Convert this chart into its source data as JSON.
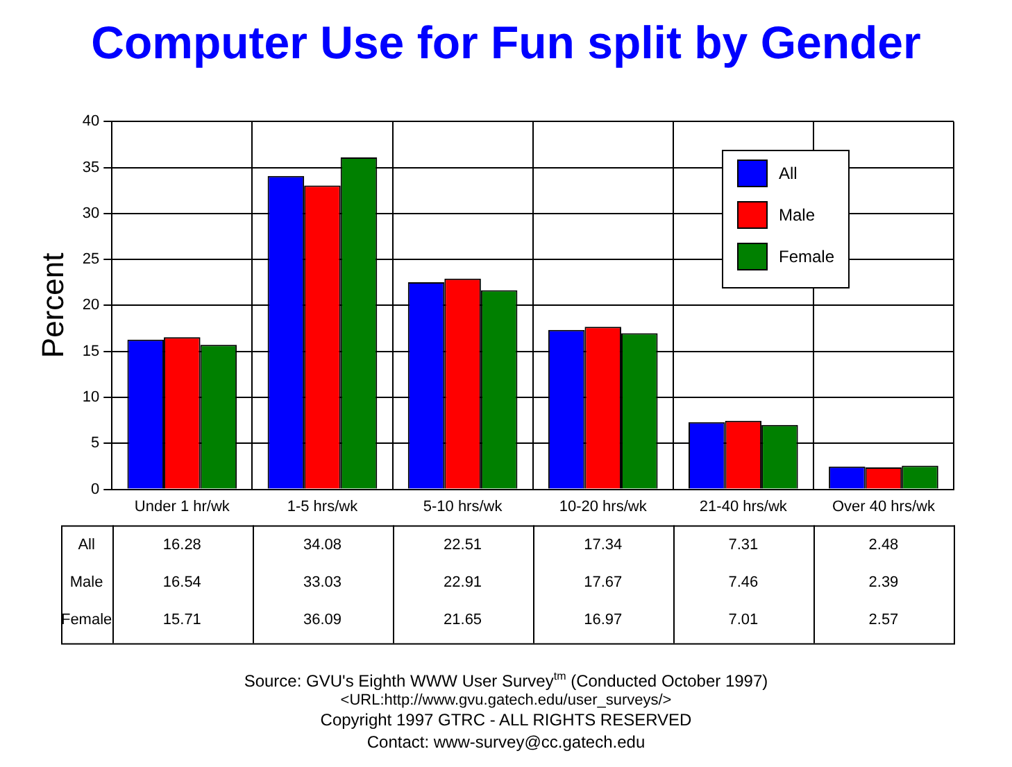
{
  "chart_data": {
    "type": "bar",
    "title": "Computer Use for Fun split by Gender",
    "ylabel": "Percent",
    "categories": [
      "Under 1 hr/wk",
      "1-5 hrs/wk",
      "5-10 hrs/wk",
      "10-20 hrs/wk",
      "21-40 hrs/wk",
      "Over 40 hrs/wk"
    ],
    "series": [
      {
        "name": "All",
        "color": "#0000ff",
        "values": [
          16.28,
          34.08,
          22.51,
          17.34,
          7.31,
          2.48
        ]
      },
      {
        "name": "Male",
        "color": "#ff0000",
        "values": [
          16.54,
          33.03,
          22.91,
          17.67,
          7.46,
          2.39
        ]
      },
      {
        "name": "Female",
        "color": "#008000",
        "values": [
          15.71,
          36.09,
          21.65,
          16.97,
          7.01,
          2.57
        ]
      }
    ],
    "ylim": [
      0,
      40
    ],
    "yticks": [
      0,
      5,
      10,
      15,
      20,
      25,
      30,
      35,
      40
    ],
    "grid": true,
    "legend": "top right",
    "data_labels": true,
    "annotations": [
      "Source: GVU's Eighth WWW User Survey$^{tm}$ (Conducted October 1997)",
      "<URL:http://www.gvu.gatech.edu/user_surveys/>",
      "Copyright 1997 GTRC - ALL RIGHTS RESERVED",
      "Contact: www-survey@cc.gatech.edu"
    ]
  }
}
